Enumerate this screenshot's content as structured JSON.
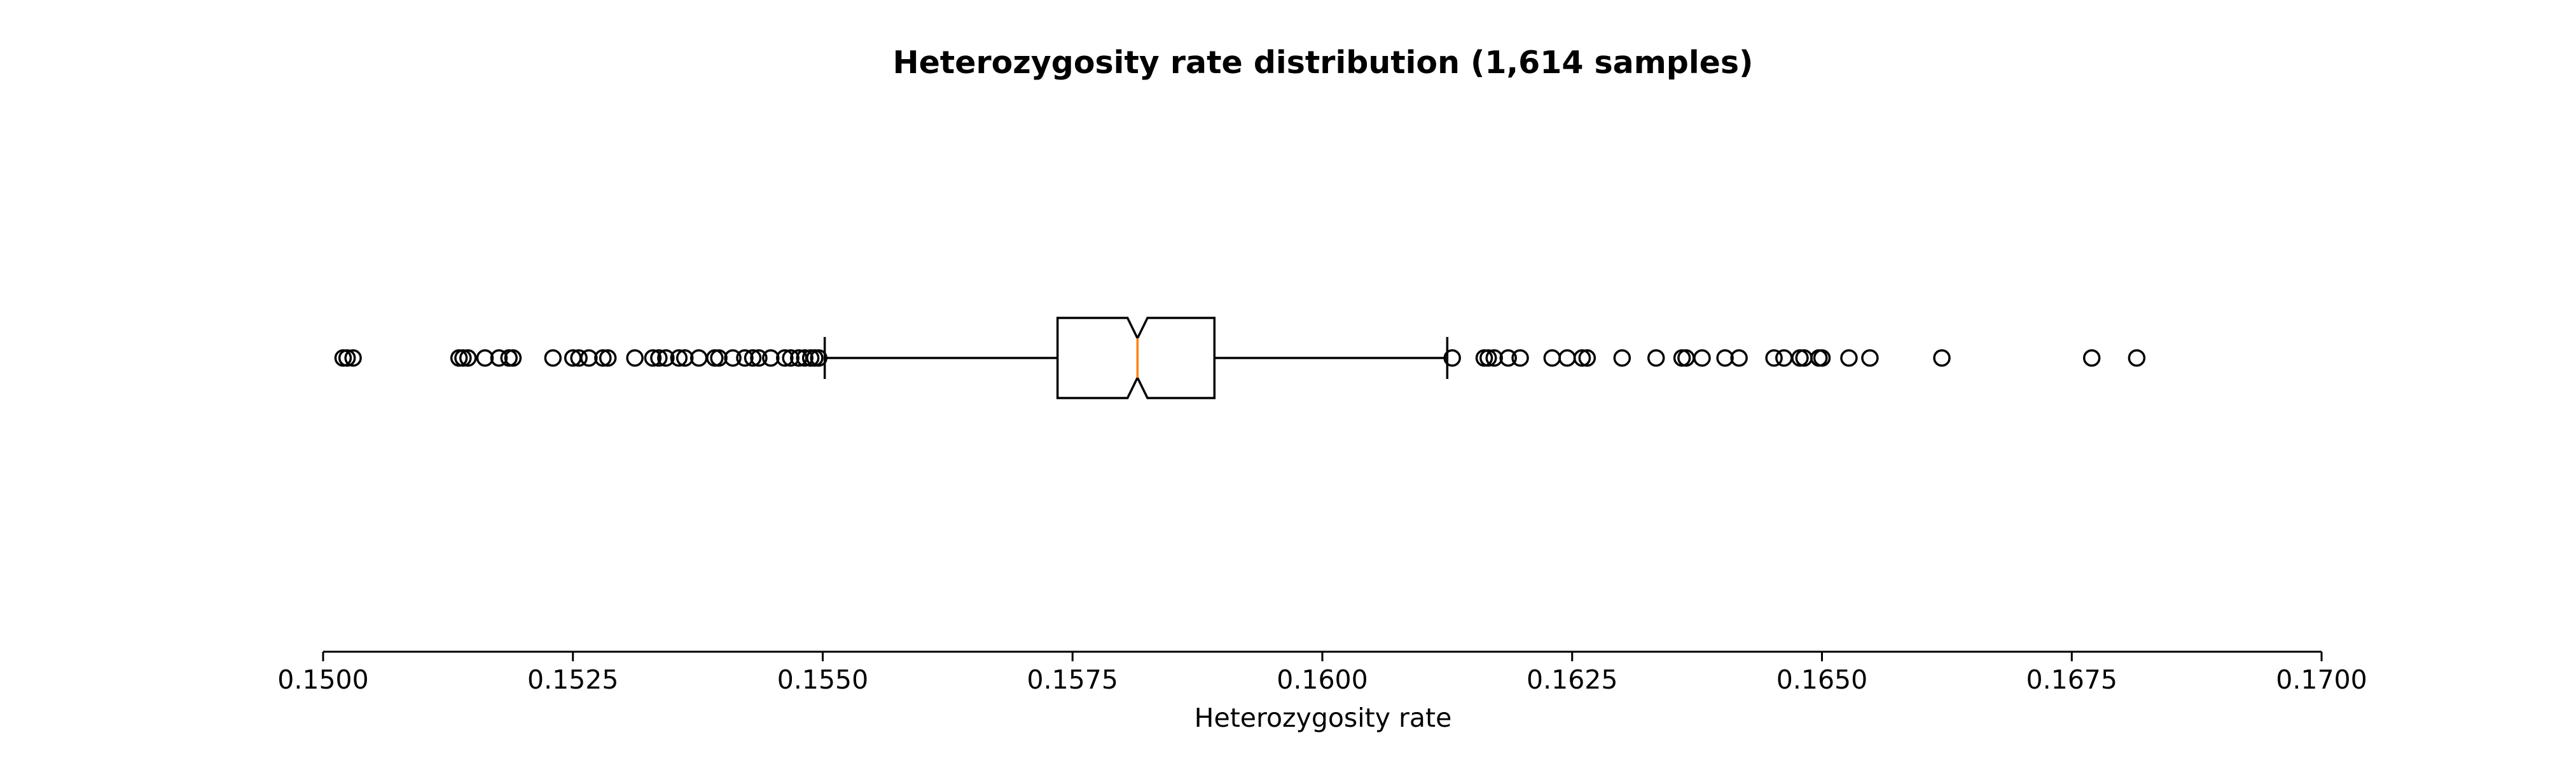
{
  "chart_data": {
    "type": "boxplot",
    "orientation": "horizontal",
    "notched": true,
    "title": "Heterozygosity rate distribution (1,614 samples)",
    "xlabel": "Heterozygosity rate",
    "ylabel": "",
    "xlim": [
      0.15,
      0.17
    ],
    "xticks": [
      0.15,
      0.1525,
      0.155,
      0.1575,
      0.16,
      0.1625,
      0.165,
      0.1675,
      0.17
    ],
    "xtick_labels": [
      "0.1500",
      "0.1525",
      "0.1550",
      "0.1575",
      "0.1600",
      "0.1625",
      "0.1650",
      "0.1675",
      "0.1700"
    ],
    "grid": false,
    "box": {
      "whisker_low": 0.15502,
      "q1": 0.15735,
      "notch_low": 0.15805,
      "median": 0.15815,
      "notch_high": 0.15825,
      "q3": 0.15892,
      "whisker_high": 0.16125
    },
    "outliers": [
      0.1502,
      0.15024,
      0.1503,
      0.15136,
      0.1514,
      0.15145,
      0.15162,
      0.15176,
      0.15186,
      0.1519,
      0.1523,
      0.1525,
      0.15256,
      0.15266,
      0.1528,
      0.15285,
      0.15312,
      0.1533,
      0.15336,
      0.15343,
      0.15356,
      0.15362,
      0.15376,
      0.15392,
      0.15396,
      0.1541,
      0.15422,
      0.1543,
      0.15436,
      0.15448,
      0.15462,
      0.15468,
      0.15476,
      0.15482,
      0.15488,
      0.15492,
      0.15496,
      0.1613,
      0.16162,
      0.16166,
      0.16172,
      0.16186,
      0.16198,
      0.1623,
      0.16245,
      0.1626,
      0.16265,
      0.163,
      0.16334,
      0.1636,
      0.16364,
      0.1638,
      0.16403,
      0.16417,
      0.16452,
      0.16462,
      0.16478,
      0.16482,
      0.16497,
      0.165,
      0.16527,
      0.16548,
      0.1662,
      0.1677,
      0.16815
    ],
    "colors": {
      "box": "#000000",
      "median": "#ff7f0e",
      "outlier_edge": "#000000",
      "outlier_fill": "none"
    }
  }
}
